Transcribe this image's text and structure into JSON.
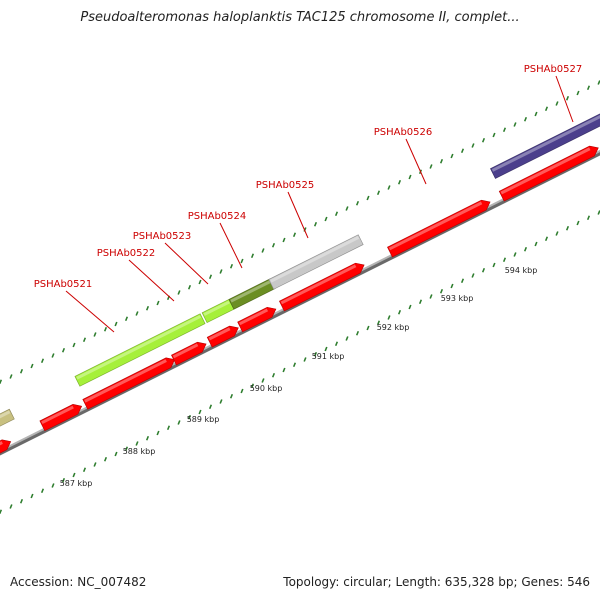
{
  "header": {
    "title": "Pseudoalteromonas haloplanktis TAC125 chromosome II, complet..."
  },
  "footer": {
    "accession": "Accession: NC_007482",
    "topology": "Topology: circular; Length: 635,328 bp; Genes: 546"
  },
  "colors": {
    "backbone": "#8c8c8c",
    "tick": "#2e7d2e",
    "forward_gene": "#ff0000",
    "gene_label": "#cc0000",
    "light_green_gene": "#a6f03a",
    "olive_gene": "#6b8e23",
    "gray_gene": "#c8c8c8",
    "purple_gene": "#4b3f8c",
    "khaki_gene": "#c8c080"
  },
  "scale_labels": [
    "587 kbp",
    "588 kbp",
    "589 kbp",
    "590 kbp",
    "591 kbp",
    "592 kbp",
    "593 kbp",
    "594 kbp"
  ],
  "gene_labels": [
    "PSHAb0521",
    "PSHAb0522",
    "PSHAb0523",
    "PSHAb0524",
    "PSHAb0525",
    "PSHAb0526",
    "PSHAb0527"
  ]
}
